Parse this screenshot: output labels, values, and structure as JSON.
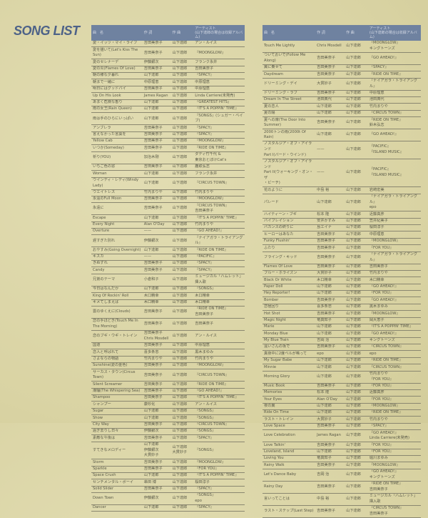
{
  "title": "SONG LIST",
  "colors": {
    "title": "#4d6288",
    "header_bg": "#6f82a0",
    "paper": "#dcd7a9"
  },
  "headers": {
    "title": "曲　名",
    "lyrics": "作 詞",
    "music": "作 曲",
    "artist": "アーティスト\n(山下達郎の場合は収録アルバム)"
  },
  "left_rows": [
    [
      "愛・イッツ・マイ・ライフ",
      "吉田美奈子",
      "山下達郎",
      "アン・ルイス"
    ],
    [
      "愛を描いて(Let's Kiss The Sun)",
      "吉田美奈子",
      "山下達郎",
      "『MOONGLOW』"
    ],
    [
      "愛のセレナーデ",
      "伊藤銀次",
      "山下達郎",
      "フランク永井"
    ],
    [
      "愛の炎(Flames Of Love)",
      "吉田美奈子",
      "山下達郎",
      "吉田美奈子"
    ],
    [
      "朝の様な夕暮れ",
      "山下達郎",
      "山下達郎",
      "『SPACY』"
    ],
    [
      "朝まで一緒に",
      "中原理恵",
      "山下達郎",
      "中原理恵"
    ],
    [
      "明日にはグッドバイ",
      "吉田美奈子",
      "山下達郎",
      "中原理恵"
    ],
    [
      "Up On His Look",
      "James Ragan",
      "山下達郎",
      "Linda Carriere(未発売)"
    ],
    [
      "あまく危険な香り",
      "山下達郎",
      "山下達郎",
      "『GREATEST HITS』"
    ],
    [
      "雨の女王(Rain Queen)",
      "山下達郎",
      "山下達郎",
      "『IT'S A POPPIN' TIME』"
    ],
    [
      "雨は手のひらにいっぱい",
      "山下達郎",
      "山下達郎",
      "『SONGS』(シュガー・ベイブ)"
    ],
    [
      "アンブレラ",
      "吉田美奈子",
      "山下達郎",
      "『SPACY』"
    ],
    [
      "言えなかった言葉を",
      "吉田美奈子",
      "山下達郎",
      "『SPACY』"
    ],
    [
      "Yellow Cab",
      "吉田美奈子",
      "山下達郎",
      "『MOONGLOW』"
    ],
    [
      "いつか(Someday)",
      "吉田美奈子",
      "山下達郎",
      "『RIDE ON TIME』"
    ],
    [
      "祈り(YOU)",
      "加治木剛",
      "山下達郎",
      "ダディ竹千代 &\n東京おとぼけCat's"
    ],
    [
      "いちご色の窓",
      "吉田美奈子",
      "山下達郎",
      "鹿取弘志"
    ],
    [
      "Woman",
      "山下達郎",
      "山下達郎",
      "フランク永井"
    ],
    [
      "ウインディ・レディ(Windy Lady)",
      "山下達郎",
      "山下達郎",
      "『CIRCUS TOWN』"
    ],
    [
      "ウエイトレス",
      "竹内まりや",
      "山下達郎",
      "竹内まりや"
    ],
    [
      "永遠のFull Moon",
      "吉田美奈子",
      "山下達郎",
      "『MOONGLOW』"
    ],
    [
      "永遠に",
      "吉田美奈子",
      "山下達郎",
      "『CIRCUS TOWN』\n吉田美奈子"
    ],
    [
      "Escape",
      "山下達郎",
      "山下達郎",
      "『IT'S A POPPIN' TIME』"
    ],
    [
      "Every Night",
      "Alan O'Day",
      "山下達郎",
      "竹内まりや"
    ],
    [
      "Overture",
      "——",
      "山下達郎",
      "『GO AHEAD!』"
    ],
    [
      "遅すぎた別れ",
      "伊藤銀次",
      "山下達郎",
      "『ナイアガラ・トライアングル』"
    ],
    [
      "おやすみ(Going Overnight)",
      "山下達郎",
      "山下達郎",
      "『RIDE ON TIME』"
    ],
    [
      "キスカ",
      "——",
      "山下達郎",
      "『PACIFIC』"
    ],
    [
      "きぬずれ",
      "吉田美奈子",
      "山下達郎",
      "『SPACY』"
    ],
    [
      "Candy",
      "吉田美奈子",
      "山下達郎",
      "『SPACY』"
    ],
    [
      "兄弟のテーマ",
      "小倉和子",
      "山下達郎",
      "ミュージカル「ハムレット」挿入歌"
    ],
    [
      "今日はなんだか",
      "山下達郎",
      "山下達郎",
      "『SONGS』"
    ],
    [
      "King Of Rockin' Roll",
      "木口精幸",
      "山下達郎",
      "木口精幸"
    ],
    [
      "キメてしまえば",
      "木口精幸",
      "山下達郎",
      "木口精幸"
    ],
    [
      "雲のゆくえに(Clouds)",
      "吉田美奈子",
      "山下達郎",
      "『RIDE ON TIME』\n吉田美奈子"
    ],
    [
      "恋の手ほどき(Touch Me In The Morning)",
      "吉田美奈子",
      "山下達郎",
      "吉田美奈子"
    ],
    [
      "恋のブギ・ウギ・トレイン",
      "吉田美奈子\nChris Mosdell",
      "山下達郎",
      "アン・ルイス"
    ],
    [
      "国道",
      "吉田美奈子",
      "山下達郎",
      "中原理恵"
    ],
    [
      "恋人と呼ばれて",
      "喜多条忠",
      "山下達郎",
      "黒木まゆみ"
    ],
    [
      "さよならの物語",
      "竹内まりや",
      "山下達郎",
      "竹内まりや"
    ],
    [
      "Sunshine(愛の金色)",
      "吉田美奈子",
      "山下達郎",
      "『MOONGLOW』"
    ],
    [
      "サーカス・タウン(Circus Town)",
      "吉田美奈子",
      "山下達郎",
      "『CIRCUS TOWN』"
    ],
    [
      "Silent Screamer",
      "吉田美奈子",
      "山下達郎",
      "『RIDE ON TIME』"
    ],
    [
      "潮騒(The Whispering Sea)",
      "吉田美奈子",
      "山下達郎",
      "『GO AHEAD!』"
    ],
    [
      "Shampoo",
      "吉田美奈子",
      "山下達郎",
      "『IT'S A POPPIN' TIME』"
    ],
    [
      "シャンプー",
      "康珍化",
      "山下達郎",
      "アン・ルイス"
    ],
    [
      "Sugar",
      "山下達郎",
      "山下達郎",
      "『SONGS』"
    ],
    [
      "Show",
      "山下達郎",
      "山下達郎",
      "『SONGS』"
    ],
    [
      "City Way",
      "吉田美奈子",
      "山下達郎",
      "『CIRCUS TOWN』"
    ],
    [
      "過ぎ去りし日々",
      "伊藤銀次",
      "山下達郎",
      "『SONGS』"
    ],
    [
      "素敵な午後は",
      "吉田美奈子",
      "山下達郎",
      "『SPACY』"
    ],
    [
      "すてきなメロディー",
      "山下達郎\n伊藤銀次\n大貫妙子",
      "山下達郎\n大貫妙子",
      "『SONGS』"
    ],
    [
      "Storm",
      "吉田美奈子",
      "山下達郎",
      "『MOONGLOW』"
    ],
    [
      "Sparkle",
      "吉田美奈子",
      "山下達郎",
      "『FOR YOU』"
    ],
    [
      "Space Crush",
      "山下達郎",
      "山下達郎",
      "『IT'S A POPPIN' TIME』"
    ],
    [
      "センチメンタル・ボーイ",
      "串田 博",
      "山下達郎",
      "桜田淳子"
    ],
    [
      "Solid Slider",
      "吉田美奈子",
      "山下達郎",
      "『SPACY』"
    ],
    [
      "Down Town",
      "伊藤銀次",
      "山下達郎",
      "『SONGS』\nepo"
    ],
    [
      "Dancer",
      "山下達郎",
      "山下達郎",
      "『SPACY』"
    ]
  ],
  "right_rows": [
    [
      "Touch Me Lightly",
      "Chris Mosdell",
      "山下達郎",
      "『MOONGLOW』\nキングトーンズ"
    ],
    [
      "ついておいで(Follow Me Along)",
      "吉田美奈子",
      "山下達郎",
      "『GO AHEAD!』"
    ],
    [
      "翼に乗せて",
      "吉田美奈子",
      "山下達郎",
      "『SPACY』"
    ],
    [
      "Daydream",
      "吉田美奈子",
      "山下達郎",
      "『RIDE ON TIME』"
    ],
    [
      "ドリーミング・デイ",
      "大貫妙子",
      "山下達郎",
      "『ナイアガラ・トライアングル』"
    ],
    [
      "ドリーミング・ラブ",
      "吉田美奈子",
      "山下達郎",
      "中原理恵"
    ],
    [
      "Dream In The Street",
      "池田典代",
      "山下達郎",
      "池田典代"
    ],
    [
      "夏の恋人",
      "山下達郎",
      "山下達郎",
      "竹内まりや"
    ],
    [
      "夏の陽",
      "山下達郎",
      "山下達郎",
      "『CIRCUS TOWN』"
    ],
    [
      "夏への扉(The Door Into Summer)",
      "吉田美奈子",
      "山下達郎",
      "『RIDE ON TIME』\n鈴木弘志"
    ],
    [
      "2000トンの雨(2000t Of Rain)",
      "山下達郎",
      "山下達郎",
      "『GO AHEAD!』"
    ],
    [
      "ノスタルジア・オブ・アイランド\nPart I(バード・ウインド)",
      "——",
      "山下達郎",
      "『PACIFIC』\n『ISLAND MUSIC』"
    ],
    [
      "ノスタルジア・オブ・アイランド\nPart II(ウォーキング・オン・ザ\n・ビーチ)",
      "——",
      "山下達郎",
      "『PACIFIC』\n『ISLAND MUSIC』"
    ],
    [
      "花のように",
      "中島 裕",
      "山下達郎",
      "岩崎宏美"
    ],
    [
      "パレード",
      "山下達郎",
      "山下達郎",
      "『ナイアガラ・トライアングル』\nepo"
    ],
    [
      "ハイティーン・ブギ",
      "松本 隆",
      "山下達郎",
      "近藤真彦"
    ],
    [
      "バイブレイション",
      "安井かずみ",
      "山下達郎",
      "笠井紀美子"
    ],
    [
      "バカンスの終りに",
      "島エイナ",
      "山下達郎",
      "桜田淳子"
    ],
    [
      "ヒーローはあなた",
      "吉田美奈子",
      "山下達郎",
      "中原理恵"
    ],
    [
      "Funky Flushin'",
      "吉田美奈子",
      "山下達郎",
      "『MOONGLOW』"
    ],
    [
      "ふたり",
      "吉田美奈子",
      "山下達郎",
      "『FOR YOU』"
    ],
    [
      "フライング・キッド",
      "吉田美奈子",
      "山下達郎",
      "『ナイアガラ・トライアングル』"
    ],
    [
      "Flames Of Love",
      "吉田美奈子",
      "山下達郎",
      "吉田美奈子"
    ],
    [
      "ブルー・ホライズン",
      "大貫妙子",
      "山下達郎",
      "竹内まりや"
    ],
    [
      "Black Or White",
      "木口精幸",
      "山下達郎",
      "木口精幸"
    ],
    [
      "Paper Doll",
      "山下達郎",
      "山下達郎",
      "『GO AHEAD!』"
    ],
    [
      "Hey Reporter!",
      "山下達郎",
      "山下達郎",
      "『FOR YOU』"
    ],
    [
      "Bomber",
      "吉田美奈子",
      "山下達郎",
      "『GO AHEAD!』"
    ],
    [
      "恋極回り",
      "喜多条忠",
      "山下達郎",
      "黒木まゆみ"
    ],
    [
      "Hot Shot",
      "吉田美奈子",
      "山下達郎",
      "『MOONGLOW』"
    ],
    [
      "Magic Night",
      "竜真知子",
      "山下達郎",
      "岡大恵子"
    ],
    [
      "Marie",
      "山下達郎",
      "山下達郎",
      "『IT'S A POPPIN' TIME』"
    ],
    [
      "Monday Blue",
      "山下達郎",
      "山下達郎",
      "『GO AHEAD!』"
    ],
    [
      "My Blue Train",
      "吉岡 治",
      "山下達郎",
      "キングトーンズ"
    ],
    [
      "遠いさんの坂で",
      "吉田美奈子",
      "山下達郎",
      "『CIRCUS TOWN』"
    ],
    [
      "真夜中に2度ベルが鳴って",
      "epo",
      "山下達郎",
      "epo"
    ],
    [
      "My Sugar Babe",
      "山下達郎",
      "山下達郎",
      "『RIDE ON TIME』"
    ],
    [
      "Minnie",
      "山下達郎",
      "山下達郎",
      "『CIRCUS TOWN』"
    ],
    [
      "Morning Glory",
      "山下達郎",
      "山下達郎",
      "竹内まりや\n『FOR YOU』"
    ],
    [
      "Music Book",
      "吉田美奈子",
      "山下達郎",
      "『FOR YOU』"
    ],
    [
      "Memories",
      "松本 隆",
      "山下達郎",
      "近藤真彦"
    ],
    [
      "Your Eyes",
      "Alan O'Day",
      "山下達郎",
      "『FOR YOU』"
    ],
    [
      "夜の翼",
      "山下達郎",
      "山下達郎",
      "『MOONGLOW』"
    ],
    [
      "Ride On Time",
      "山下達郎",
      "山下達郎",
      "『RIDE ON TIME』"
    ],
    [
      "ラスト・トレイン",
      "大貫妙子",
      "山下達郎",
      "竹内まりや"
    ],
    [
      "Love Space",
      "吉田美奈子",
      "山下達郎",
      "『SPACY』"
    ],
    [
      "Love Celebration",
      "James Ragan",
      "山下達郎",
      "『GO AHEAD!』\nLinda Carriere(未発売)"
    ],
    [
      "Love Talkin'",
      "吉田美奈子",
      "山下達郎",
      "『FOR YOU』"
    ],
    [
      "Loveland, Island",
      "山下達郎",
      "山下達郎",
      "『FOR YOU』"
    ],
    [
      "Loving You",
      "竜真知子",
      "山下達郎",
      "堀川まゆみ"
    ],
    [
      "Rainy Walk",
      "吉田美奈子",
      "山下達郎",
      "『MOONGLOW』"
    ],
    [
      "Let's Dance Baby",
      "吉岡 治",
      "山下達郎",
      "『GO AHEAD!』\nキングトーンズ"
    ],
    [
      "Rainy Day",
      "吉田美奈子",
      "山下達郎",
      "『RIDE ON TIME』\n吉田美奈子"
    ],
    [
      "言いってことは",
      "中島 裕",
      "山下達郎",
      "ミュージカル「ハムレット」挿入歌"
    ],
    [
      "ラスト・ステップ(Last Step)",
      "吉田美奈子",
      "山下達郎",
      "『CIRCUS TOWN』\n吉田美奈子"
    ]
  ]
}
